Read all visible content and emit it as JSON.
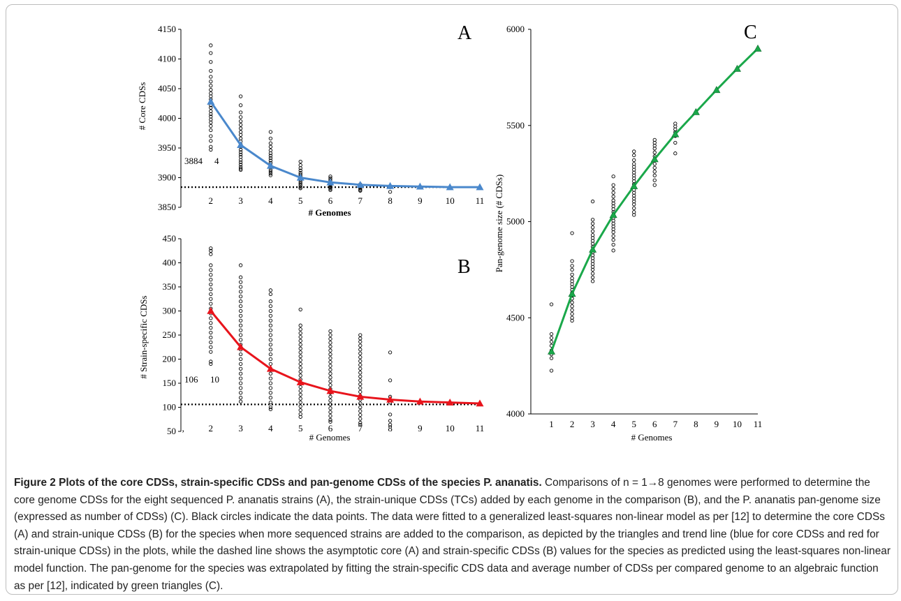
{
  "chart_data": [
    {
      "panel": "A",
      "type": "scatter",
      "xlabel": "# Genomes",
      "ylabel": "# Core CDSs",
      "xlim": [
        1,
        11
      ],
      "ylim": [
        3850,
        4150
      ],
      "xticks": [
        2,
        3,
        4,
        5,
        6,
        7,
        8,
        9,
        10,
        11
      ],
      "yticks": [
        3850,
        3900,
        3950,
        4000,
        4050,
        4100,
        4150
      ],
      "asymptote": 3884,
      "annotation": [
        "3884",
        "4"
      ],
      "trend_color": "#4a88cc",
      "fit_x": [
        2,
        3,
        4,
        5,
        6,
        7,
        8,
        9,
        10,
        11
      ],
      "fit_y": [
        4028,
        3955,
        3920,
        3900,
        3892,
        3888,
        3886,
        3885,
        3884,
        3884
      ],
      "triangles_x": [
        2,
        3,
        4,
        5,
        6,
        7,
        8,
        9,
        10,
        11
      ],
      "points": [
        {
          "x": 2,
          "values": [
            4123,
            4110,
            4095,
            4080,
            4070,
            4062,
            4055,
            4048,
            4042,
            4037,
            4032,
            4027,
            4022,
            4018,
            4012,
            4007,
            4003,
            3998,
            3993,
            3987,
            3980,
            3970,
            3962,
            3952,
            3947
          ]
        },
        {
          "x": 3,
          "values": [
            4037,
            4022,
            4010,
            4002,
            3995,
            3989,
            3983,
            3977,
            3972,
            3966,
            3961,
            3956,
            3952,
            3947,
            3943,
            3939,
            3935,
            3930,
            3926,
            3922,
            3918,
            3915,
            3913
          ]
        },
        {
          "x": 4,
          "values": [
            3977,
            3966,
            3958,
            3952,
            3946,
            3941,
            3937,
            3933,
            3929,
            3925,
            3921,
            3917,
            3913,
            3910,
            3907,
            3904
          ]
        },
        {
          "x": 5,
          "values": [
            3927,
            3921,
            3916,
            3912,
            3908,
            3905,
            3902,
            3899,
            3896,
            3893,
            3890,
            3887,
            3884,
            3882
          ]
        },
        {
          "x": 6,
          "values": [
            3902,
            3899,
            3896,
            3893,
            3891,
            3889,
            3887,
            3885,
            3883,
            3881,
            3879
          ]
        },
        {
          "x": 7,
          "values": [
            3889,
            3887,
            3885,
            3883,
            3881,
            3879,
            3878
          ]
        },
        {
          "x": 8,
          "values": [
            3884,
            3876
          ]
        }
      ]
    },
    {
      "panel": "B",
      "type": "scatter",
      "xlabel": "# Genomes",
      "ylabel": "# Strain-specific CDSs",
      "xlim": [
        1,
        11
      ],
      "ylim": [
        50,
        450
      ],
      "xticks": [
        2,
        3,
        4,
        5,
        6,
        7,
        8,
        9,
        10,
        11
      ],
      "yticks": [
        50,
        100,
        150,
        200,
        250,
        300,
        350,
        400,
        450
      ],
      "asymptote": 106,
      "annotation": [
        "106",
        "10"
      ],
      "trend_color": "#e8141c",
      "fit_x": [
        2,
        3,
        4,
        5,
        6,
        7,
        8,
        9,
        10,
        11
      ],
      "fit_y": [
        300,
        225,
        180,
        152,
        134,
        122,
        116,
        112,
        110,
        108
      ],
      "triangles_x": [
        2,
        3,
        4,
        5,
        6,
        7,
        8,
        9,
        10,
        11
      ],
      "points": [
        {
          "x": 2,
          "values": [
            430,
            425,
            418,
            395,
            385,
            375,
            365,
            355,
            345,
            335,
            325,
            315,
            305,
            295,
            285,
            275,
            265,
            255,
            245,
            235,
            225,
            215,
            195,
            190
          ]
        },
        {
          "x": 3,
          "values": [
            395,
            370,
            360,
            350,
            340,
            330,
            320,
            310,
            300,
            290,
            280,
            270,
            260,
            250,
            240,
            230,
            220,
            210,
            200,
            190,
            180,
            170,
            160,
            150,
            140,
            130,
            120,
            112
          ]
        },
        {
          "x": 4,
          "values": [
            343,
            335,
            320,
            310,
            300,
            290,
            280,
            270,
            260,
            250,
            240,
            230,
            220,
            210,
            200,
            190,
            180,
            170,
            160,
            150,
            140,
            130,
            120,
            110,
            100,
            96
          ]
        },
        {
          "x": 5,
          "values": [
            303,
            270,
            262,
            254,
            246,
            238,
            230,
            222,
            214,
            206,
            198,
            190,
            182,
            174,
            166,
            158,
            150,
            142,
            134,
            126,
            118,
            110,
            102,
            94,
            86,
            80
          ]
        },
        {
          "x": 6,
          "values": [
            258,
            250,
            242,
            234,
            226,
            218,
            210,
            202,
            194,
            186,
            178,
            170,
            162,
            154,
            146,
            138,
            130,
            122,
            114,
            106,
            98,
            90,
            82,
            74,
            70
          ]
        },
        {
          "x": 7,
          "values": [
            250,
            243,
            236,
            228,
            220,
            212,
            204,
            196,
            188,
            180,
            172,
            164,
            156,
            148,
            140,
            132,
            124,
            116,
            108,
            100,
            92,
            84,
            76,
            68,
            64
          ]
        },
        {
          "x": 8,
          "values": [
            214,
            156,
            122,
            116,
            110,
            85,
            72,
            64
          ]
        }
      ]
    },
    {
      "panel": "C",
      "type": "scatter",
      "xlabel": "# Genomes",
      "ylabel": "Pan-genome size (# CDSs)",
      "xlim": [
        0,
        11
      ],
      "ylim": [
        4000,
        6000
      ],
      "xticks": [
        1,
        2,
        3,
        4,
        5,
        6,
        7,
        8,
        9,
        10,
        11
      ],
      "yticks": [
        4000,
        4500,
        5000,
        5500,
        6000
      ],
      "trend_color": "#1aa84a",
      "fit_x": [
        1,
        2,
        3,
        4,
        5,
        6,
        7,
        8,
        9,
        10,
        11
      ],
      "fit_y": [
        4325,
        4625,
        4855,
        5035,
        5185,
        5325,
        5455,
        5570,
        5685,
        5795,
        5900
      ],
      "triangles_x": [
        1,
        2,
        3,
        4,
        5,
        6,
        7,
        8,
        9,
        10,
        11
      ],
      "points": [
        {
          "x": 1,
          "values": [
            4570,
            4415,
            4395,
            4375,
            4355,
            4330,
            4310,
            4290,
            4225
          ]
        },
        {
          "x": 2,
          "values": [
            4940,
            4795,
            4770,
            4750,
            4725,
            4705,
            4690,
            4675,
            4660,
            4645,
            4630,
            4615,
            4600,
            4580,
            4560,
            4540,
            4520,
            4500,
            4485
          ]
        },
        {
          "x": 3,
          "values": [
            5105,
            5010,
            4990,
            4970,
            4950,
            4930,
            4915,
            4900,
            4885,
            4870,
            4855,
            4840,
            4825,
            4810,
            4795,
            4780,
            4765,
            4750,
            4730,
            4710,
            4690
          ]
        },
        {
          "x": 4,
          "values": [
            5235,
            5190,
            5170,
            5150,
            5130,
            5110,
            5095,
            5080,
            5065,
            5050,
            5035,
            5020,
            5005,
            4990,
            4975,
            4960,
            4945,
            4925,
            4905,
            4880,
            4850
          ]
        },
        {
          "x": 5,
          "values": [
            5365,
            5345,
            5320,
            5300,
            5285,
            5270,
            5255,
            5240,
            5225,
            5210,
            5195,
            5180,
            5165,
            5150,
            5135,
            5120,
            5105,
            5090,
            5070,
            5050,
            5035
          ]
        },
        {
          "x": 6,
          "values": [
            5425,
            5410,
            5395,
            5380,
            5360,
            5340,
            5320,
            5300,
            5280,
            5260,
            5240,
            5215,
            5190
          ]
        },
        {
          "x": 7,
          "values": [
            5510,
            5495,
            5480,
            5465,
            5445,
            5410,
            5355
          ]
        }
      ]
    }
  ],
  "caption": {
    "title": "Figure 2 Plots of the core CDSs, strain-specific CDSs and pan-genome CDSs of the species P. ananatis.",
    "lines": [
      "Comparisons of n = 1→8 genomes were performed to determine the core genome CDSs for the eight sequenced P. ananatis strains (A), the strain-unique CDSs (TCs) added by each genome in the comparison (B), and the P. ananatis pan-genome size (expressed as number of CDSs) (C). Black circles indicate the data points. The data were fitted to a generalized least-squares non-linear model as per [12] to determine the core CDSs (A) and strain-unique CDSs (B) for the species when more sequenced strains are added to the comparison, as depicted by the triangles and trend line (blue for core CDSs and red for strain-unique CDSs) in the plots, while the dashed line shows the asymptotic core (A) and strain-specific CDSs (B) values for the species as predicted using the least-squares non-linear model function. The pan-genome for the species was extrapolated by fitting the strain-specific CDS data and average number of CDSs per compared genome to an algebraic function as per [12], indicated by green triangles (C)."
    ]
  },
  "stray_tick": "’"
}
